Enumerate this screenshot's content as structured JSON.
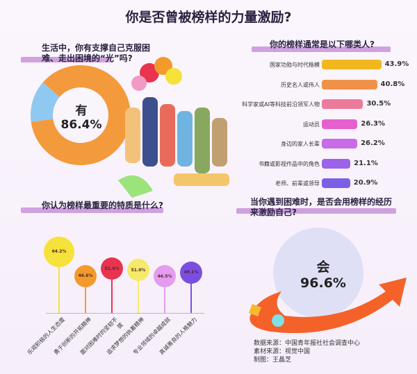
{
  "title": "你是否曾被榜样的力量激励?",
  "credits": [
    "数据来源：中国青年报社社会调查中心",
    "素材来源：视觉中国",
    "制图：王晶芝"
  ],
  "chart_data": [
    {
      "type": "pie",
      "title": "生活中，你有支撑自己克服困难、走出困境的“光”吗?",
      "categories": [
        "有",
        "其他"
      ],
      "values": [
        86.4,
        13.6
      ],
      "label": "有",
      "value_label": "86.4%",
      "colors": [
        "#f39a3c",
        "#8fc8f0"
      ]
    },
    {
      "type": "bar",
      "orientation": "horizontal",
      "title": "你的榜样通常是以下哪类人?",
      "categories": [
        "国家功勋与时代楷模",
        "历史名人或伟人",
        "科学家或AI等科技前沿领军人物",
        "运动员",
        "身边的家人长辈",
        "书籍或影视作品中的角色",
        "老师、前辈或领导"
      ],
      "values": [
        43.9,
        40.8,
        30.5,
        26.3,
        26.2,
        21.1,
        20.9
      ],
      "value_labels": [
        "43.9%",
        "40.8%",
        "30.5%",
        "26.3%",
        "26.2%",
        "21.1%",
        "20.9%"
      ],
      "colors": [
        "#f2b71f",
        "#f0914a",
        "#ec7a9a",
        "#e65fcf",
        "#c96be6",
        "#9c62e8",
        "#7d5fe6"
      ]
    },
    {
      "type": "lollipop",
      "title": "你认为榜样最重要的特质是什么?",
      "categories": [
        "乐观积极的人生态度",
        "勇于创新的开拓精神",
        "面对困难时的坚韧不拔",
        "追求梦想的执着精神",
        "专业领域的卓越成就",
        "真诚善良的人格魅力"
      ],
      "values": [
        64.2,
        46.6,
        51.9,
        51.0,
        46.5,
        49.1
      ],
      "value_labels": [
        "64.2%",
        "46.6%",
        "51.9%",
        "51.0%",
        "46.5%",
        "49.1%"
      ],
      "colors": [
        "#f5e23a",
        "#f39a2c",
        "#e8344f",
        "#f6ea6a",
        "#e59bf0",
        "#7a4fe0"
      ]
    },
    {
      "type": "single-value",
      "title": "当你遇到困难时，是否会用榜样的经历来激励自己?",
      "label": "会",
      "value": 96.6,
      "value_label": "96.6%",
      "colors": [
        "#dfe0f6",
        "#f4622a"
      ]
    }
  ]
}
